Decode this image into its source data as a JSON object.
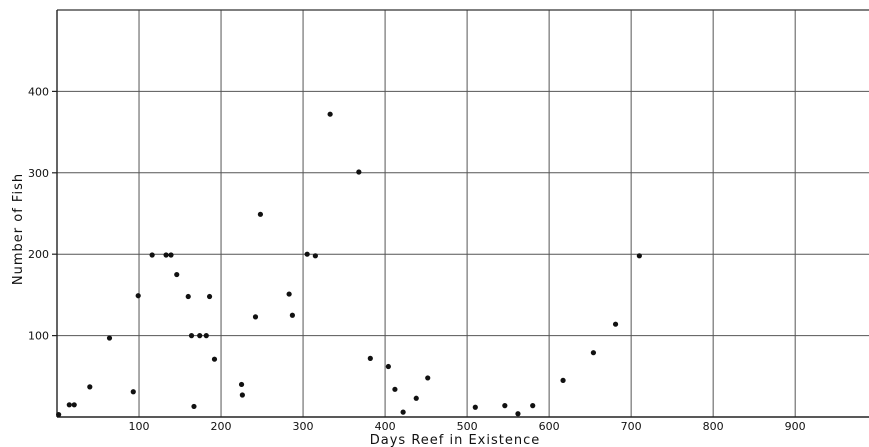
{
  "chart_data": {
    "type": "scatter",
    "title": "",
    "xlabel": "Days Reef in Existence",
    "ylabel": "Number of Fish",
    "xlim": [
      0,
      990
    ],
    "ylim": [
      0,
      500
    ],
    "x_ticks": [
      100,
      200,
      300,
      400,
      500,
      600,
      700,
      800,
      900
    ],
    "y_ticks": [
      100,
      200,
      300,
      400
    ],
    "grid": true,
    "legend": "none",
    "points": [
      {
        "x": 2,
        "y": 3
      },
      {
        "x": 15,
        "y": 15
      },
      {
        "x": 21,
        "y": 15
      },
      {
        "x": 40,
        "y": 37
      },
      {
        "x": 64,
        "y": 97
      },
      {
        "x": 93,
        "y": 31
      },
      {
        "x": 99,
        "y": 149
      },
      {
        "x": 116,
        "y": 199
      },
      {
        "x": 133,
        "y": 199
      },
      {
        "x": 139,
        "y": 199
      },
      {
        "x": 146,
        "y": 175
      },
      {
        "x": 160,
        "y": 148
      },
      {
        "x": 164,
        "y": 100
      },
      {
        "x": 167,
        "y": 13
      },
      {
        "x": 174,
        "y": 100
      },
      {
        "x": 182,
        "y": 100
      },
      {
        "x": 186,
        "y": 148
      },
      {
        "x": 192,
        "y": 71
      },
      {
        "x": 225,
        "y": 40
      },
      {
        "x": 226,
        "y": 27
      },
      {
        "x": 242,
        "y": 123
      },
      {
        "x": 248,
        "y": 249
      },
      {
        "x": 283,
        "y": 151
      },
      {
        "x": 287,
        "y": 125
      },
      {
        "x": 305,
        "y": 200
      },
      {
        "x": 315,
        "y": 198
      },
      {
        "x": 333,
        "y": 372
      },
      {
        "x": 368,
        "y": 301
      },
      {
        "x": 382,
        "y": 72
      },
      {
        "x": 404,
        "y": 62
      },
      {
        "x": 412,
        "y": 34
      },
      {
        "x": 422,
        "y": 6
      },
      {
        "x": 438,
        "y": 23
      },
      {
        "x": 452,
        "y": 48
      },
      {
        "x": 510,
        "y": 12
      },
      {
        "x": 546,
        "y": 14
      },
      {
        "x": 562,
        "y": 4
      },
      {
        "x": 580,
        "y": 14
      },
      {
        "x": 617,
        "y": 45
      },
      {
        "x": 654,
        "y": 79
      },
      {
        "x": 681,
        "y": 114
      },
      {
        "x": 710,
        "y": 198
      }
    ]
  }
}
